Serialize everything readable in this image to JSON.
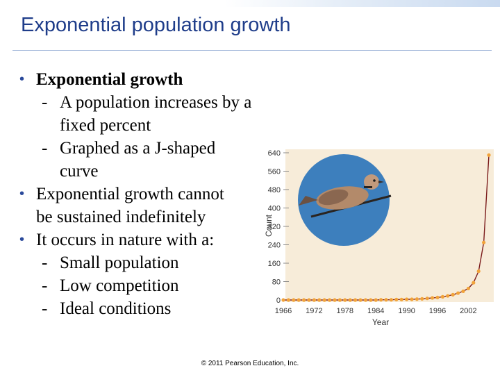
{
  "slide": {
    "title": "Exponential population growth",
    "footer": "© 2011 Pearson Education, Inc."
  },
  "bullets": [
    {
      "text": "Exponential growth",
      "bold": true,
      "subs": [
        "A population increases by a fixed percent",
        "Graphed as a J-shaped curve"
      ]
    },
    {
      "text": "Exponential growth cannot be sustained indefinitely",
      "bold": false,
      "subs": []
    },
    {
      "text": "It occurs in nature with a:",
      "bold": false,
      "subs": [
        "Small population",
        "Low competition",
        "Ideal conditions"
      ]
    }
  ],
  "colors": {
    "title": "#1f3d8a",
    "point": "#f2a33a",
    "curve": "#7a1a1a",
    "panel": "#f7ecd9",
    "photo_bg": "#3d7fbd"
  },
  "chart_data": {
    "type": "line",
    "xlabel": "Year",
    "ylabel": "Count",
    "x_ticks": [
      1966,
      1972,
      1978,
      1984,
      1990,
      1996,
      2002
    ],
    "y_ticks": [
      0,
      80,
      160,
      240,
      320,
      400,
      480,
      560,
      640
    ],
    "xlim": [
      1966,
      2006
    ],
    "ylim": [
      0,
      640
    ],
    "series": [
      {
        "x": [
          1966,
          1967,
          1968,
          1969,
          1970,
          1971,
          1972,
          1973,
          1974,
          1975,
          1976,
          1977,
          1978,
          1979,
          1980,
          1981,
          1982,
          1983,
          1984,
          1985,
          1986,
          1987,
          1988,
          1989,
          1990,
          1991,
          1992,
          1993,
          1994,
          1995,
          1996,
          1997,
          1998,
          1999,
          2000,
          2001,
          2002,
          2003,
          2004,
          2005,
          2006
        ],
        "y": [
          0,
          0,
          0,
          0,
          0,
          0,
          0,
          0,
          0,
          0,
          0,
          0,
          0,
          0,
          0,
          0,
          0,
          0,
          0,
          1,
          1,
          1,
          2,
          2,
          3,
          3,
          4,
          5,
          7,
          9,
          11,
          14,
          18,
          23,
          30,
          38,
          50,
          75,
          125,
          250,
          630
        ]
      }
    ]
  }
}
